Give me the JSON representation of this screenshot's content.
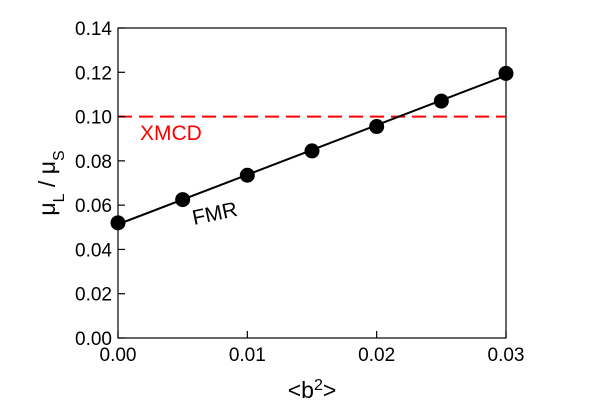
{
  "chart_data": {
    "type": "scatter",
    "xlabel": "<b²>",
    "ylabel": "μL / μS",
    "xlim": [
      0,
      0.03
    ],
    "ylim": [
      0,
      0.14
    ],
    "x_ticks": [
      "0.00",
      "0.01",
      "0.02",
      "0.03"
    ],
    "x_tick_values": [
      0,
      0.01,
      0.02,
      0.03
    ],
    "y_ticks": [
      "0.00",
      "0.02",
      "0.04",
      "0.06",
      "0.08",
      "0.10",
      "0.12",
      "0.14"
    ],
    "y_tick_values": [
      0,
      0.02,
      0.04,
      0.06,
      0.08,
      0.1,
      0.12,
      0.14
    ],
    "grid": false,
    "series": [
      {
        "name": "FMR",
        "color": "#000000",
        "style": "line-with-markers",
        "x": [
          0,
          0.005,
          0.01,
          0.015,
          0.02,
          0.025,
          0.03
        ],
        "y": [
          0.052,
          0.0625,
          0.0735,
          0.0845,
          0.0955,
          0.107,
          0.1195
        ]
      },
      {
        "name": "XMCD",
        "color": "#ff0000",
        "style": "dashed-horizontal",
        "y": 0.1
      }
    ]
  }
}
